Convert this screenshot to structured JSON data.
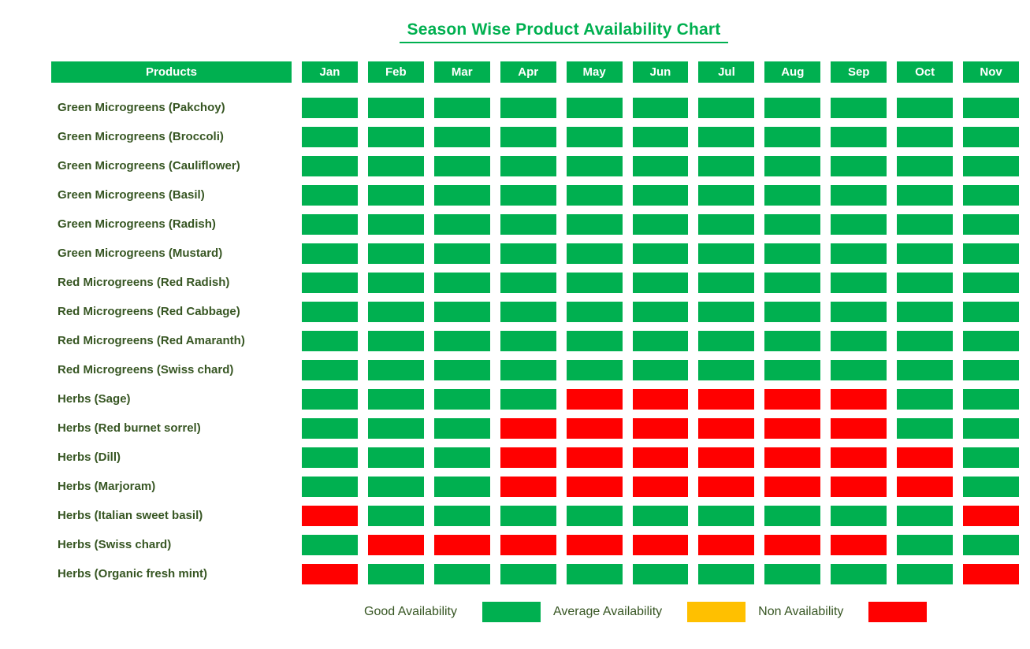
{
  "title": "Season Wise Product Availability Chart",
  "table": {
    "products_header": "Products",
    "months": [
      "Jan",
      "Feb",
      "Mar",
      "Apr",
      "May",
      "Jun",
      "Jul",
      "Aug",
      "Sep",
      "Oct",
      "Nov"
    ]
  },
  "colors": {
    "good": "#00B050",
    "average": "#FFC000",
    "non": "#FF0000",
    "header_bg": "#00B050",
    "header_text": "#FFFFFF",
    "label_text": "#375623",
    "title_text": "#00B050"
  },
  "legend": [
    {
      "label": "Good Availability",
      "key": "good"
    },
    {
      "label": "Average Availability",
      "key": "average"
    },
    {
      "label": "Non Availability",
      "key": "non"
    }
  ],
  "chart_data": {
    "type": "heatmap",
    "title": "Season Wise Product Availability Chart",
    "x_categories": [
      "Jan",
      "Feb",
      "Mar",
      "Apr",
      "May",
      "Jun",
      "Jul",
      "Aug",
      "Sep",
      "Oct",
      "Nov"
    ],
    "y_categories": [
      "Green Microgreens (Pakchoy)",
      "Green Microgreens (Broccoli)",
      "Green Microgreens (Cauliflower)",
      "Green Microgreens (Basil)",
      "Green Microgreens (Radish)",
      "Green Microgreens (Mustard)",
      "Red Microgreens (Red Radish)",
      "Red Microgreens (Red Cabbage)",
      "Red Microgreens (Red Amaranth)",
      "Red Microgreens (Swiss chard)",
      "Herbs (Sage)",
      "Herbs (Red burnet sorrel)",
      "Herbs (Dill)",
      "Herbs (Marjoram)",
      "Herbs (Italian sweet basil)",
      "Herbs (Swiss chard)",
      "Herbs (Organic fresh mint)"
    ],
    "cell_states": {
      "G": "good",
      "Y": "average",
      "R": "non"
    },
    "rows": [
      {
        "product": "Green Microgreens (Pakchoy)",
        "availability": [
          "G",
          "G",
          "G",
          "G",
          "G",
          "G",
          "G",
          "G",
          "G",
          "G",
          "G"
        ]
      },
      {
        "product": "Green Microgreens (Broccoli)",
        "availability": [
          "G",
          "G",
          "G",
          "G",
          "G",
          "G",
          "G",
          "G",
          "G",
          "G",
          "G"
        ]
      },
      {
        "product": "Green Microgreens (Cauliflower)",
        "availability": [
          "G",
          "G",
          "G",
          "G",
          "G",
          "G",
          "G",
          "G",
          "G",
          "G",
          "G"
        ]
      },
      {
        "product": "Green Microgreens (Basil)",
        "availability": [
          "G",
          "G",
          "G",
          "G",
          "G",
          "G",
          "G",
          "G",
          "G",
          "G",
          "G"
        ]
      },
      {
        "product": "Green Microgreens (Radish)",
        "availability": [
          "G",
          "G",
          "G",
          "G",
          "G",
          "G",
          "G",
          "G",
          "G",
          "G",
          "G"
        ]
      },
      {
        "product": "Green Microgreens (Mustard)",
        "availability": [
          "G",
          "G",
          "G",
          "G",
          "G",
          "G",
          "G",
          "G",
          "G",
          "G",
          "G"
        ]
      },
      {
        "product": "Red Microgreens (Red Radish)",
        "availability": [
          "G",
          "G",
          "G",
          "G",
          "G",
          "G",
          "G",
          "G",
          "G",
          "G",
          "G"
        ]
      },
      {
        "product": "Red Microgreens (Red Cabbage)",
        "availability": [
          "G",
          "G",
          "G",
          "G",
          "G",
          "G",
          "G",
          "G",
          "G",
          "G",
          "G"
        ]
      },
      {
        "product": "Red Microgreens (Red Amaranth)",
        "availability": [
          "G",
          "G",
          "G",
          "G",
          "G",
          "G",
          "G",
          "G",
          "G",
          "G",
          "G"
        ]
      },
      {
        "product": "Red Microgreens (Swiss chard)",
        "availability": [
          "G",
          "G",
          "G",
          "G",
          "G",
          "G",
          "G",
          "G",
          "G",
          "G",
          "G"
        ]
      },
      {
        "product": "Herbs (Sage)",
        "availability": [
          "G",
          "G",
          "G",
          "G",
          "R",
          "R",
          "R",
          "R",
          "R",
          "G",
          "G"
        ]
      },
      {
        "product": "Herbs (Red burnet sorrel)",
        "availability": [
          "G",
          "G",
          "G",
          "R",
          "R",
          "R",
          "R",
          "R",
          "R",
          "G",
          "G"
        ]
      },
      {
        "product": "Herbs (Dill)",
        "availability": [
          "G",
          "G",
          "G",
          "R",
          "R",
          "R",
          "R",
          "R",
          "R",
          "R",
          "G"
        ]
      },
      {
        "product": "Herbs (Marjoram)",
        "availability": [
          "G",
          "G",
          "G",
          "R",
          "R",
          "R",
          "R",
          "R",
          "R",
          "R",
          "G"
        ]
      },
      {
        "product": "Herbs (Italian sweet basil)",
        "availability": [
          "R",
          "G",
          "G",
          "G",
          "G",
          "G",
          "G",
          "G",
          "G",
          "G",
          "R"
        ]
      },
      {
        "product": "Herbs (Swiss chard)",
        "availability": [
          "G",
          "R",
          "R",
          "R",
          "R",
          "R",
          "R",
          "R",
          "R",
          "G",
          "G"
        ]
      },
      {
        "product": "Herbs (Organic fresh mint)",
        "availability": [
          "R",
          "G",
          "G",
          "G",
          "G",
          "G",
          "G",
          "G",
          "G",
          "G",
          "R"
        ]
      }
    ],
    "legend": [
      {
        "label": "Good Availability",
        "color": "#00B050"
      },
      {
        "label": "Average Availability",
        "color": "#FFC000"
      },
      {
        "label": "Non Availability",
        "color": "#FF0000"
      }
    ],
    "legend_position": "bottom",
    "grid": false
  }
}
